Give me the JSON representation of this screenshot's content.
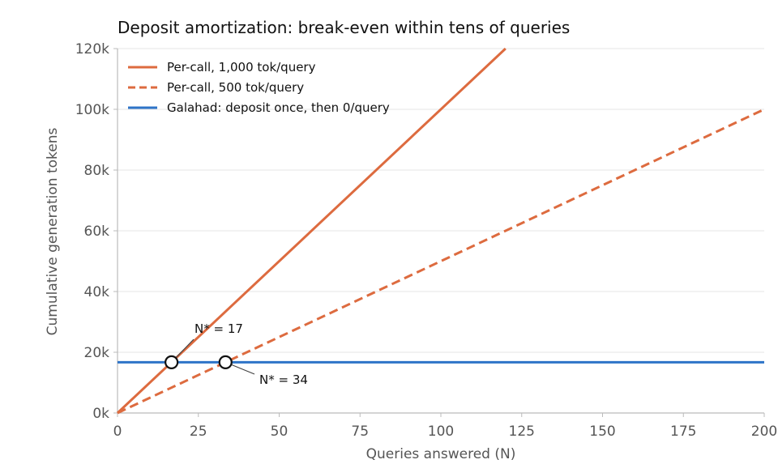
{
  "chart_data": {
    "type": "line",
    "title": "Deposit amortization: break-even within tens of queries",
    "xlabel": "Queries answered (N)",
    "ylabel": "Cumulative generation tokens",
    "xlim": [
      0,
      200
    ],
    "ylim": [
      0,
      120000
    ],
    "x_ticks": [
      0,
      25,
      50,
      75,
      100,
      125,
      150,
      175,
      200
    ],
    "x_tick_labels": [
      "0",
      "25",
      "50",
      "75",
      "100",
      "125",
      "150",
      "175",
      "200"
    ],
    "y_ticks": [
      0,
      20000,
      40000,
      60000,
      80000,
      100000,
      120000
    ],
    "y_tick_labels": [
      "0k",
      "20k",
      "40k",
      "60k",
      "80k",
      "100k",
      "120k"
    ],
    "grid": "horizontal",
    "legend_position": "top-left",
    "series": [
      {
        "name": "Per-call, 1,000 tok/query",
        "color": "#dd6b3f",
        "style": "solid",
        "x": [
          0,
          120
        ],
        "y": [
          0,
          120000
        ]
      },
      {
        "name": "Per-call, 500 tok/query",
        "color": "#dd6b3f",
        "style": "dashed",
        "x": [
          0,
          200
        ],
        "y": [
          0,
          100000
        ]
      },
      {
        "name": "Galahad: deposit once, then 0/query",
        "color": "#2e74c8",
        "style": "solid",
        "x": [
          0,
          200
        ],
        "y": [
          16700,
          16700
        ]
      }
    ],
    "annotations": [
      {
        "label": "N* = 17",
        "x": 16.7,
        "y": 16700
      },
      {
        "label": "N* = 34",
        "x": 33.4,
        "y": 16700
      }
    ]
  }
}
